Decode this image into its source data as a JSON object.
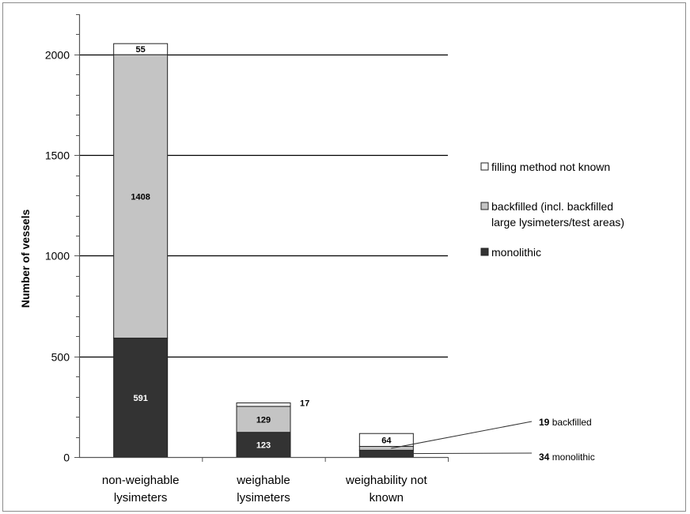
{
  "chart_data": {
    "type": "bar",
    "stacked": true,
    "title": "",
    "xlabel": "",
    "ylabel": "Number of vessels",
    "ylim": [
      0,
      2200
    ],
    "yticks": [
      0,
      500,
      1000,
      1500,
      2000
    ],
    "grid": true,
    "legend_position": "right",
    "categories": [
      [
        "non-weighable",
        "lysimeters"
      ],
      [
        "weighable",
        "lysimeters"
      ],
      [
        "weighability not",
        "known"
      ]
    ],
    "series": [
      {
        "name": "monolithic",
        "values": [
          591,
          123,
          34
        ],
        "color": "#333333"
      },
      {
        "name": "backfilled (incl. backfilled large lysimeters/test areas)",
        "legend_lines": [
          "backfilled (incl. backfilled",
          "large lysimeters/test areas)"
        ],
        "values": [
          1408,
          129,
          19
        ],
        "color": "#c4c4c4"
      },
      {
        "name": "filling method not known",
        "values": [
          55,
          17,
          64
        ],
        "color": "#ffffff"
      }
    ],
    "data_labels": [
      [
        "591",
        "1408",
        "55"
      ],
      [
        "123",
        "129",
        "17"
      ],
      [
        "",
        "",
        "64"
      ]
    ],
    "annotations": [
      {
        "number": "19",
        "text": "backfilled"
      },
      {
        "number": "34",
        "text": "monolithic"
      }
    ]
  }
}
